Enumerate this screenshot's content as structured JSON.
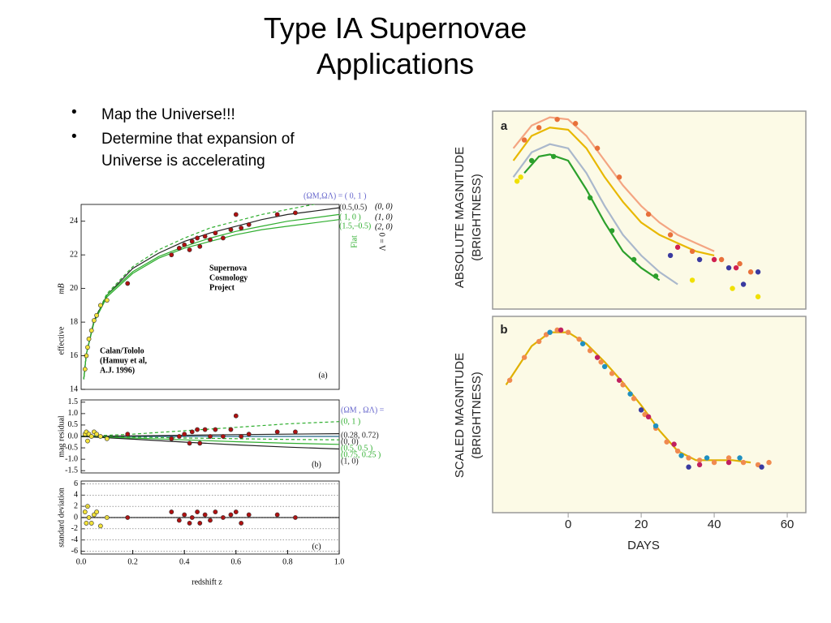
{
  "title": [
    "Type IA Supernovae",
    "Applications"
  ],
  "bullets": [
    "Map the Universe!!!",
    "Determine that expansion of Universe is accelerating"
  ],
  "chart_data": [
    {
      "type": "scatter",
      "ylabel": [
        "effective",
        "mB"
      ],
      "xlim": [
        0,
        1
      ],
      "ylim": [
        14,
        25
      ],
      "yticks": [
        14,
        16,
        18,
        20,
        22,
        24
      ],
      "annotations": [
        "Supernova",
        "Cosmology",
        "Project",
        "Calan/Tololo",
        "(Hamuy et al,",
        "A.J. 1996)",
        "(a)",
        "(0, 0)",
        "(1, 0)",
        "(2, 0)",
        "Flat",
        "Λ = 0"
      ],
      "series": [
        {
          "name": "(ΩM,ΩΛ) = ( 0,   1 )",
          "style": "line",
          "dash": true,
          "color": "#2fae2f",
          "x": [
            0.01,
            0.02,
            0.05,
            0.1,
            0.2,
            0.3,
            0.4,
            0.5,
            0.6,
            0.7,
            0.8,
            0.9,
            1.0
          ],
          "values": [
            14.6,
            16.1,
            18.1,
            19.7,
            21.3,
            22.3,
            23.0,
            23.6,
            24.0,
            24.4,
            24.7,
            25.0,
            25.2
          ]
        },
        {
          "name": "(0.5,0.5)",
          "style": "line",
          "color": "#222222",
          "x": [
            0.01,
            0.02,
            0.05,
            0.1,
            0.2,
            0.3,
            0.4,
            0.5,
            0.6,
            0.7,
            0.8,
            0.9,
            1.0
          ],
          "values": [
            14.6,
            16.1,
            18.1,
            19.6,
            21.2,
            22.1,
            22.8,
            23.3,
            23.7,
            24.1,
            24.4,
            24.6,
            24.8
          ]
        },
        {
          "name": "( 1,    0 )",
          "style": "line",
          "color": "#2fae2f",
          "x": [
            0.01,
            0.02,
            0.05,
            0.1,
            0.2,
            0.3,
            0.4,
            0.5,
            0.6,
            0.7,
            0.8,
            0.9,
            1.0
          ],
          "values": [
            14.6,
            16.1,
            18.0,
            19.6,
            21.0,
            21.9,
            22.5,
            23.0,
            23.4,
            23.7,
            24.0,
            24.2,
            24.4
          ]
        },
        {
          "name": "(1.5,–0.5)",
          "style": "line",
          "color": "#2fae2f",
          "x": [
            0.01,
            0.02,
            0.05,
            0.1,
            0.2,
            0.3,
            0.4,
            0.5,
            0.6,
            0.7,
            0.8,
            0.9,
            1.0
          ],
          "values": [
            14.6,
            16.1,
            18.0,
            19.5,
            20.9,
            21.8,
            22.4,
            22.8,
            23.2,
            23.5,
            23.7,
            23.9,
            24.1
          ]
        },
        {
          "style": "points",
          "color": "#f2e23a",
          "x": [
            0.015,
            0.02,
            0.025,
            0.03,
            0.04,
            0.05,
            0.06,
            0.075,
            0.1
          ],
          "values": [
            15.2,
            16.0,
            16.5,
            17.0,
            17.5,
            18.1,
            18.4,
            19.0,
            19.3
          ]
        },
        {
          "style": "points",
          "color": "#b01010",
          "x": [
            0.18,
            0.35,
            0.38,
            0.4,
            0.42,
            0.43,
            0.45,
            0.46,
            0.48,
            0.5,
            0.52,
            0.55,
            0.58,
            0.6,
            0.62,
            0.65,
            0.76,
            0.83
          ],
          "values": [
            20.3,
            22.0,
            22.4,
            22.6,
            22.3,
            22.8,
            23.0,
            22.5,
            23.1,
            22.9,
            23.3,
            23.0,
            23.5,
            24.4,
            23.6,
            23.8,
            24.4,
            24.5
          ]
        }
      ]
    },
    {
      "type": "scatter",
      "ylabel": [
        "mag residual"
      ],
      "xlim": [
        0,
        1
      ],
      "ylim": [
        -1.6,
        1.6
      ],
      "yticks": [
        1.5,
        {
          "value": 1,
          "label": "1.0"
        },
        0.5,
        {
          "value": 0,
          "label": "0.0"
        },
        -0.5,
        {
          "value": -1,
          "label": "-1.0"
        },
        -1.5
      ],
      "annotations": [
        "(ΩM , ΩΛ) =",
        "(b)"
      ],
      "series": [
        {
          "name": "(0,      1 )",
          "style": "line",
          "dash": true,
          "color": "#2fae2f",
          "x": [
            0,
            0.2,
            0.4,
            0.6,
            0.8,
            1.0
          ],
          "values": [
            0,
            0.1,
            0.25,
            0.4,
            0.55,
            0.65
          ]
        },
        {
          "name": "(0.28,   0.72)",
          "style": "line",
          "color": "#226688",
          "x": [
            0,
            0.2,
            0.4,
            0.6,
            0.8,
            1.0
          ],
          "values": [
            0,
            0,
            0,
            0,
            0,
            0
          ]
        },
        {
          "name": "(0,        0)",
          "style": "line",
          "color": "#222222",
          "x": [
            0,
            0.2,
            0.4,
            0.6,
            0.8,
            1.0
          ],
          "values": [
            0,
            0.02,
            0.05,
            0.08,
            0.1,
            0.12
          ]
        },
        {
          "name": "(0.5,     0.5 )",
          "style": "line",
          "dash": true,
          "color": "#2fae2f",
          "x": [
            0,
            0.2,
            0.4,
            0.6,
            0.8,
            1.0
          ],
          "values": [
            0,
            -0.03,
            -0.07,
            -0.1,
            -0.13,
            -0.15
          ]
        },
        {
          "name": "(0.75,   0.25 )",
          "style": "line",
          "color": "#2fae2f",
          "x": [
            0,
            0.2,
            0.4,
            0.6,
            0.8,
            1.0
          ],
          "values": [
            0,
            -0.07,
            -0.15,
            -0.23,
            -0.3,
            -0.35
          ]
        },
        {
          "name": "(1,        0)",
          "style": "line",
          "color": "#222222",
          "x": [
            0,
            0.2,
            0.4,
            0.6,
            0.8,
            1.0
          ],
          "values": [
            0,
            -0.12,
            -0.25,
            -0.37,
            -0.47,
            -0.55
          ]
        },
        {
          "style": "points",
          "color": "#f2e23a",
          "x": [
            0.015,
            0.02,
            0.025,
            0.03,
            0.04,
            0.05,
            0.06,
            0.075,
            0.1
          ],
          "values": [
            0.1,
            0.2,
            -0.2,
            0.1,
            0.0,
            0.2,
            0.1,
            0.0,
            -0.1
          ]
        },
        {
          "style": "points",
          "color": "#b01010",
          "x": [
            0.18,
            0.35,
            0.38,
            0.4,
            0.42,
            0.43,
            0.45,
            0.46,
            0.48,
            0.5,
            0.52,
            0.55,
            0.58,
            0.6,
            0.62,
            0.65,
            0.76,
            0.83
          ],
          "values": [
            0.1,
            -0.1,
            0.0,
            0.1,
            -0.3,
            0.2,
            0.3,
            -0.3,
            0.3,
            0.0,
            0.3,
            0.0,
            0.3,
            0.9,
            0.0,
            0.1,
            0.2,
            0.2
          ]
        }
      ]
    },
    {
      "type": "scatter",
      "ylabel": [
        "standard deviation"
      ],
      "xlabel": "redshift z",
      "xlim": [
        0,
        1
      ],
      "ylim": [
        -6.5,
        6.5
      ],
      "grid": true,
      "yticks": [
        6,
        4,
        2,
        0,
        -2,
        -4,
        -6
      ],
      "xticks": [
        {
          "value": 0,
          "label": "0.0"
        },
        0.2,
        0.4,
        0.6,
        0.8,
        {
          "value": 1,
          "label": "1.0"
        }
      ],
      "annotations": [
        "(c)"
      ],
      "series": [
        {
          "style": "line",
          "color": "#222222",
          "x": [
            0,
            1.0
          ],
          "values": [
            0,
            0
          ]
        },
        {
          "style": "points",
          "color": "#f2e23a",
          "x": [
            0.015,
            0.02,
            0.025,
            0.03,
            0.04,
            0.05,
            0.06,
            0.075,
            0.1
          ],
          "values": [
            1,
            -1,
            2,
            0,
            -1,
            0.5,
            1,
            -1.5,
            0
          ]
        },
        {
          "style": "points",
          "color": "#b01010",
          "x": [
            0.18,
            0.35,
            0.38,
            0.4,
            0.42,
            0.43,
            0.45,
            0.46,
            0.48,
            0.5,
            0.52,
            0.55,
            0.58,
            0.6,
            0.62,
            0.65,
            0.76,
            0.83
          ],
          "values": [
            0,
            1,
            -0.5,
            0.5,
            -1,
            0,
            1,
            -1,
            0.5,
            -0.5,
            1,
            0,
            0.5,
            1,
            -1,
            0.5,
            0.5,
            0
          ]
        }
      ]
    },
    {
      "type": "scatter",
      "ylabel": [
        "ABSOLUTE MAGNITUDE",
        "(BRIGHTNESS)"
      ],
      "xlim": [
        -20.7,
        65.1
      ],
      "ylim": [
        4.5,
        -0.3
      ],
      "background": "#fcfae6",
      "annotations": [
        "a"
      ],
      "series": [
        {
          "style": "line",
          "color": "#f4a582",
          "x": [
            -15,
            -10,
            -5,
            0,
            5,
            10,
            15,
            20,
            25,
            30,
            35,
            40
          ],
          "values": [
            0.6,
            0.05,
            -0.15,
            -0.1,
            0.3,
            0.9,
            1.5,
            2.0,
            2.4,
            2.7,
            2.9,
            3.1
          ]
        },
        {
          "style": "line",
          "color": "#e8b800",
          "x": [
            -15,
            -10,
            -5,
            0,
            5,
            10,
            15,
            20,
            25,
            30,
            35,
            40
          ],
          "values": [
            0.9,
            0.3,
            0.1,
            0.15,
            0.6,
            1.3,
            1.9,
            2.4,
            2.7,
            2.9,
            3.1,
            3.2
          ]
        },
        {
          "style": "line",
          "color": "#aab8cc",
          "x": [
            -15,
            -10,
            -5,
            0,
            5,
            10,
            15,
            20,
            25,
            30
          ],
          "values": [
            1.3,
            0.7,
            0.5,
            0.6,
            1.2,
            2.0,
            2.7,
            3.2,
            3.6,
            3.9
          ]
        },
        {
          "style": "line",
          "color": "#2ca02c",
          "x": [
            -12,
            -8,
            -5,
            0,
            5,
            10,
            15,
            20,
            25
          ],
          "values": [
            1.2,
            0.8,
            0.75,
            0.9,
            1.6,
            2.4,
            3.1,
            3.5,
            3.8
          ]
        },
        {
          "style": "points",
          "color": "#e8703a",
          "x": [
            -12,
            -8,
            -3,
            2,
            8,
            14,
            22,
            28,
            34,
            42,
            47,
            50
          ],
          "values": [
            0.4,
            0.1,
            -0.1,
            0.0,
            0.6,
            1.3,
            2.2,
            2.7,
            3.1,
            3.3,
            3.4,
            3.6
          ]
        },
        {
          "style": "points",
          "color": "#3a3aa0",
          "x": [
            28,
            36,
            44,
            52,
            48
          ],
          "values": [
            3.2,
            3.3,
            3.5,
            3.6,
            3.9
          ]
        },
        {
          "style": "points",
          "color": "#2ca02c",
          "x": [
            -10,
            -4,
            6,
            12,
            18,
            24
          ],
          "values": [
            0.9,
            0.8,
            1.8,
            2.6,
            3.3,
            3.7
          ]
        },
        {
          "style": "points",
          "color": "#f0e000",
          "x": [
            -14,
            -13,
            34,
            45,
            52
          ],
          "values": [
            1.4,
            1.3,
            3.8,
            4.0,
            4.2
          ]
        },
        {
          "style": "points",
          "color": "#d02050",
          "x": [
            30,
            40,
            46
          ],
          "values": [
            3.0,
            3.3,
            3.5
          ]
        }
      ]
    },
    {
      "type": "scatter",
      "ylabel": [
        "SCALED MAGNITUDE",
        "(BRIGHTNESS)"
      ],
      "xlabel": "DAYS",
      "xlim": [
        -20.7,
        65.1
      ],
      "ylim": [
        4.0,
        -0.3
      ],
      "background": "#fcfae6",
      "xticks": [
        0,
        20,
        40,
        60
      ],
      "annotations": [
        "b"
      ],
      "series": [
        {
          "style": "line",
          "color": "#e0b000",
          "x": [
            -17,
            -10,
            -5,
            0,
            5,
            10,
            15,
            20,
            25,
            30,
            35,
            40,
            45,
            50
          ],
          "values": [
            1.2,
            0.35,
            0.05,
            0.05,
            0.3,
            0.7,
            1.15,
            1.65,
            2.2,
            2.65,
            2.85,
            2.85,
            2.85,
            2.9
          ]
        },
        {
          "style": "points",
          "color": "#f08a50",
          "x": [
            -16,
            -12,
            -8,
            -6,
            -3,
            0,
            3,
            6,
            9,
            12,
            15,
            18,
            21,
            24,
            27,
            30,
            33,
            36,
            40,
            44,
            48,
            52,
            55
          ],
          "values": [
            1.1,
            0.6,
            0.25,
            0.1,
            0.0,
            0.05,
            0.2,
            0.45,
            0.7,
            0.95,
            1.2,
            1.5,
            1.85,
            2.15,
            2.45,
            2.65,
            2.8,
            2.85,
            2.9,
            2.8,
            2.9,
            2.95,
            2.9
          ]
        },
        {
          "style": "points",
          "color": "#2090c0",
          "x": [
            -5,
            4,
            10,
            17,
            24,
            31,
            38,
            47
          ],
          "values": [
            0.05,
            0.3,
            0.8,
            1.4,
            2.1,
            2.75,
            2.8,
            2.8
          ]
        },
        {
          "style": "points",
          "color": "#c02060",
          "x": [
            -2,
            8,
            14,
            22,
            29,
            36,
            44
          ],
          "values": [
            0.0,
            0.6,
            1.1,
            1.9,
            2.5,
            2.95,
            2.9
          ]
        },
        {
          "style": "points",
          "color": "#3a3aa0",
          "x": [
            20,
            33,
            53
          ],
          "values": [
            1.75,
            3.0,
            3.0
          ]
        }
      ]
    }
  ]
}
